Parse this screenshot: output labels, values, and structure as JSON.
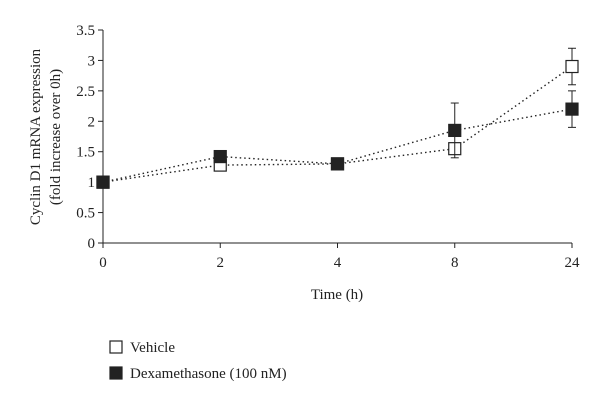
{
  "chart_data": {
    "type": "line",
    "title": "",
    "xlabel": "Time (h)",
    "ylabel_line1": "Cyclin D1 mRNA expression",
    "ylabel_line2": "(fold increase over 0h)",
    "categories": [
      "0",
      "2",
      "4",
      "8",
      "24"
    ],
    "ylim": [
      0,
      3.5
    ],
    "yticks": [
      "0",
      "0.5",
      "1",
      "1.5",
      "2",
      "2.5",
      "3",
      "3.5"
    ],
    "grid": false,
    "legend_position": "bottom-left",
    "line_style": "dotted",
    "series": [
      {
        "name": "Vehicle",
        "marker": "open-square",
        "color": "#222222",
        "values": [
          1.0,
          1.28,
          1.3,
          1.55,
          2.9
        ],
        "error": [
          0,
          0,
          0,
          0,
          0.3
        ]
      },
      {
        "name": "Dexamethasone (100 nM)",
        "marker": "filled-square",
        "color": "#222222",
        "values": [
          1.0,
          1.42,
          1.3,
          1.85,
          2.2
        ],
        "error": [
          0,
          0,
          0,
          0.45,
          0.3
        ]
      }
    ]
  }
}
